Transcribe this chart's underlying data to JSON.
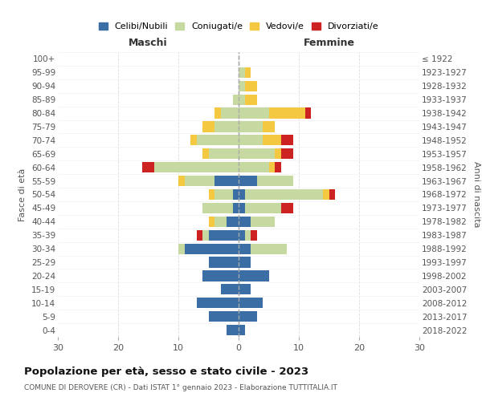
{
  "age_groups": [
    "0-4",
    "5-9",
    "10-14",
    "15-19",
    "20-24",
    "25-29",
    "30-34",
    "35-39",
    "40-44",
    "45-49",
    "50-54",
    "55-59",
    "60-64",
    "65-69",
    "70-74",
    "75-79",
    "80-84",
    "85-89",
    "90-94",
    "95-99",
    "100+"
  ],
  "birth_years": [
    "2018-2022",
    "2013-2017",
    "2008-2012",
    "2003-2007",
    "1998-2002",
    "1993-1997",
    "1988-1992",
    "1983-1987",
    "1978-1982",
    "1973-1977",
    "1968-1972",
    "1963-1967",
    "1958-1962",
    "1953-1957",
    "1948-1952",
    "1943-1947",
    "1938-1942",
    "1933-1937",
    "1928-1932",
    "1923-1927",
    "≤ 1922"
  ],
  "male": {
    "celibi": [
      2,
      5,
      7,
      3,
      6,
      5,
      9,
      5,
      2,
      1,
      1,
      4,
      0,
      0,
      0,
      0,
      0,
      0,
      0,
      0,
      0
    ],
    "coniugati": [
      0,
      0,
      0,
      0,
      0,
      0,
      1,
      1,
      2,
      5,
      3,
      5,
      14,
      5,
      7,
      4,
      3,
      1,
      0,
      0,
      0
    ],
    "vedovi": [
      0,
      0,
      0,
      0,
      0,
      0,
      0,
      0,
      1,
      0,
      1,
      1,
      0,
      1,
      1,
      2,
      1,
      0,
      0,
      0,
      0
    ],
    "divorziati": [
      0,
      0,
      0,
      0,
      0,
      0,
      0,
      1,
      0,
      0,
      0,
      0,
      2,
      0,
      0,
      0,
      0,
      0,
      0,
      0,
      0
    ]
  },
  "female": {
    "nubili": [
      1,
      3,
      4,
      2,
      5,
      2,
      2,
      1,
      2,
      1,
      1,
      3,
      0,
      0,
      0,
      0,
      0,
      0,
      0,
      0,
      0
    ],
    "coniugate": [
      0,
      0,
      0,
      0,
      0,
      0,
      6,
      1,
      4,
      6,
      13,
      6,
      5,
      6,
      4,
      4,
      5,
      1,
      1,
      1,
      0
    ],
    "vedove": [
      0,
      0,
      0,
      0,
      0,
      0,
      0,
      0,
      0,
      0,
      1,
      0,
      1,
      1,
      3,
      2,
      6,
      2,
      2,
      1,
      0
    ],
    "divorziate": [
      0,
      0,
      0,
      0,
      0,
      0,
      0,
      1,
      0,
      2,
      1,
      0,
      1,
      2,
      2,
      0,
      1,
      0,
      0,
      0,
      0
    ]
  },
  "colors": {
    "celibi": "#3a6ea5",
    "coniugati": "#c5d9a0",
    "vedovi": "#f5c842",
    "divorziati": "#cc2222"
  },
  "xlim": 30,
  "title": "Popolazione per età, sesso e stato civile - 2023",
  "subtitle": "COMUNE DI DEROVERE (CR) - Dati ISTAT 1° gennaio 2023 - Elaborazione TUTTITALIA.IT",
  "ylabel_left": "Fasce di età",
  "ylabel_right": "Anni di nascita",
  "xlabel_left": "Maschi",
  "xlabel_right": "Femmine",
  "bg_color": "#ffffff",
  "grid_color": "#cccccc"
}
